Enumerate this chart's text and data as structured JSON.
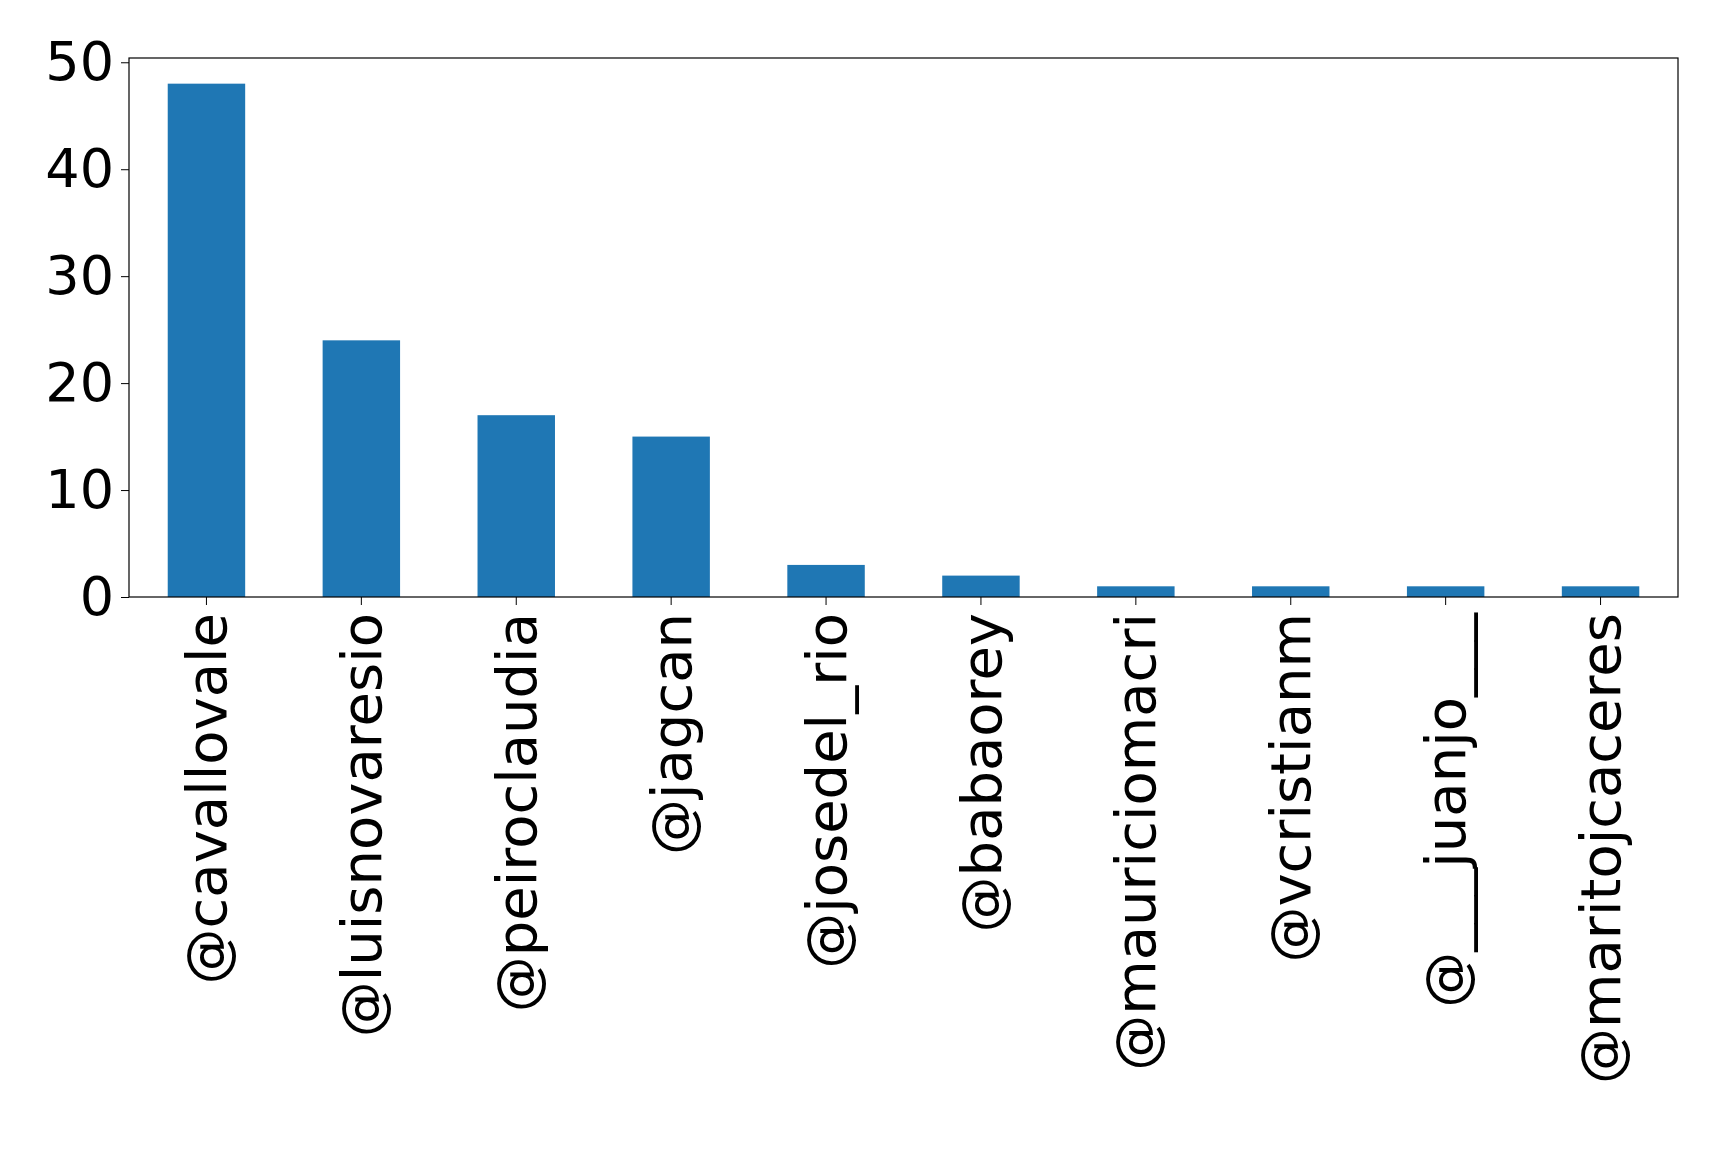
{
  "chart_data": {
    "type": "bar",
    "categories": [
      "@cavallovale",
      "@luisnovaresio",
      "@peiroclaudia",
      "@jagcan",
      "@josedel_rio",
      "@babaorey",
      "@mauriciomacri",
      "@vcristianm",
      "@___juanjo___",
      "@maritojcaceres"
    ],
    "values": [
      48,
      24,
      17,
      15,
      3,
      2,
      1,
      1,
      1,
      1
    ],
    "color": "#1f77b4",
    "ylim": [
      0,
      50.4
    ],
    "yticks": [
      0,
      10,
      20,
      30,
      40,
      50
    ],
    "grid": false
  }
}
